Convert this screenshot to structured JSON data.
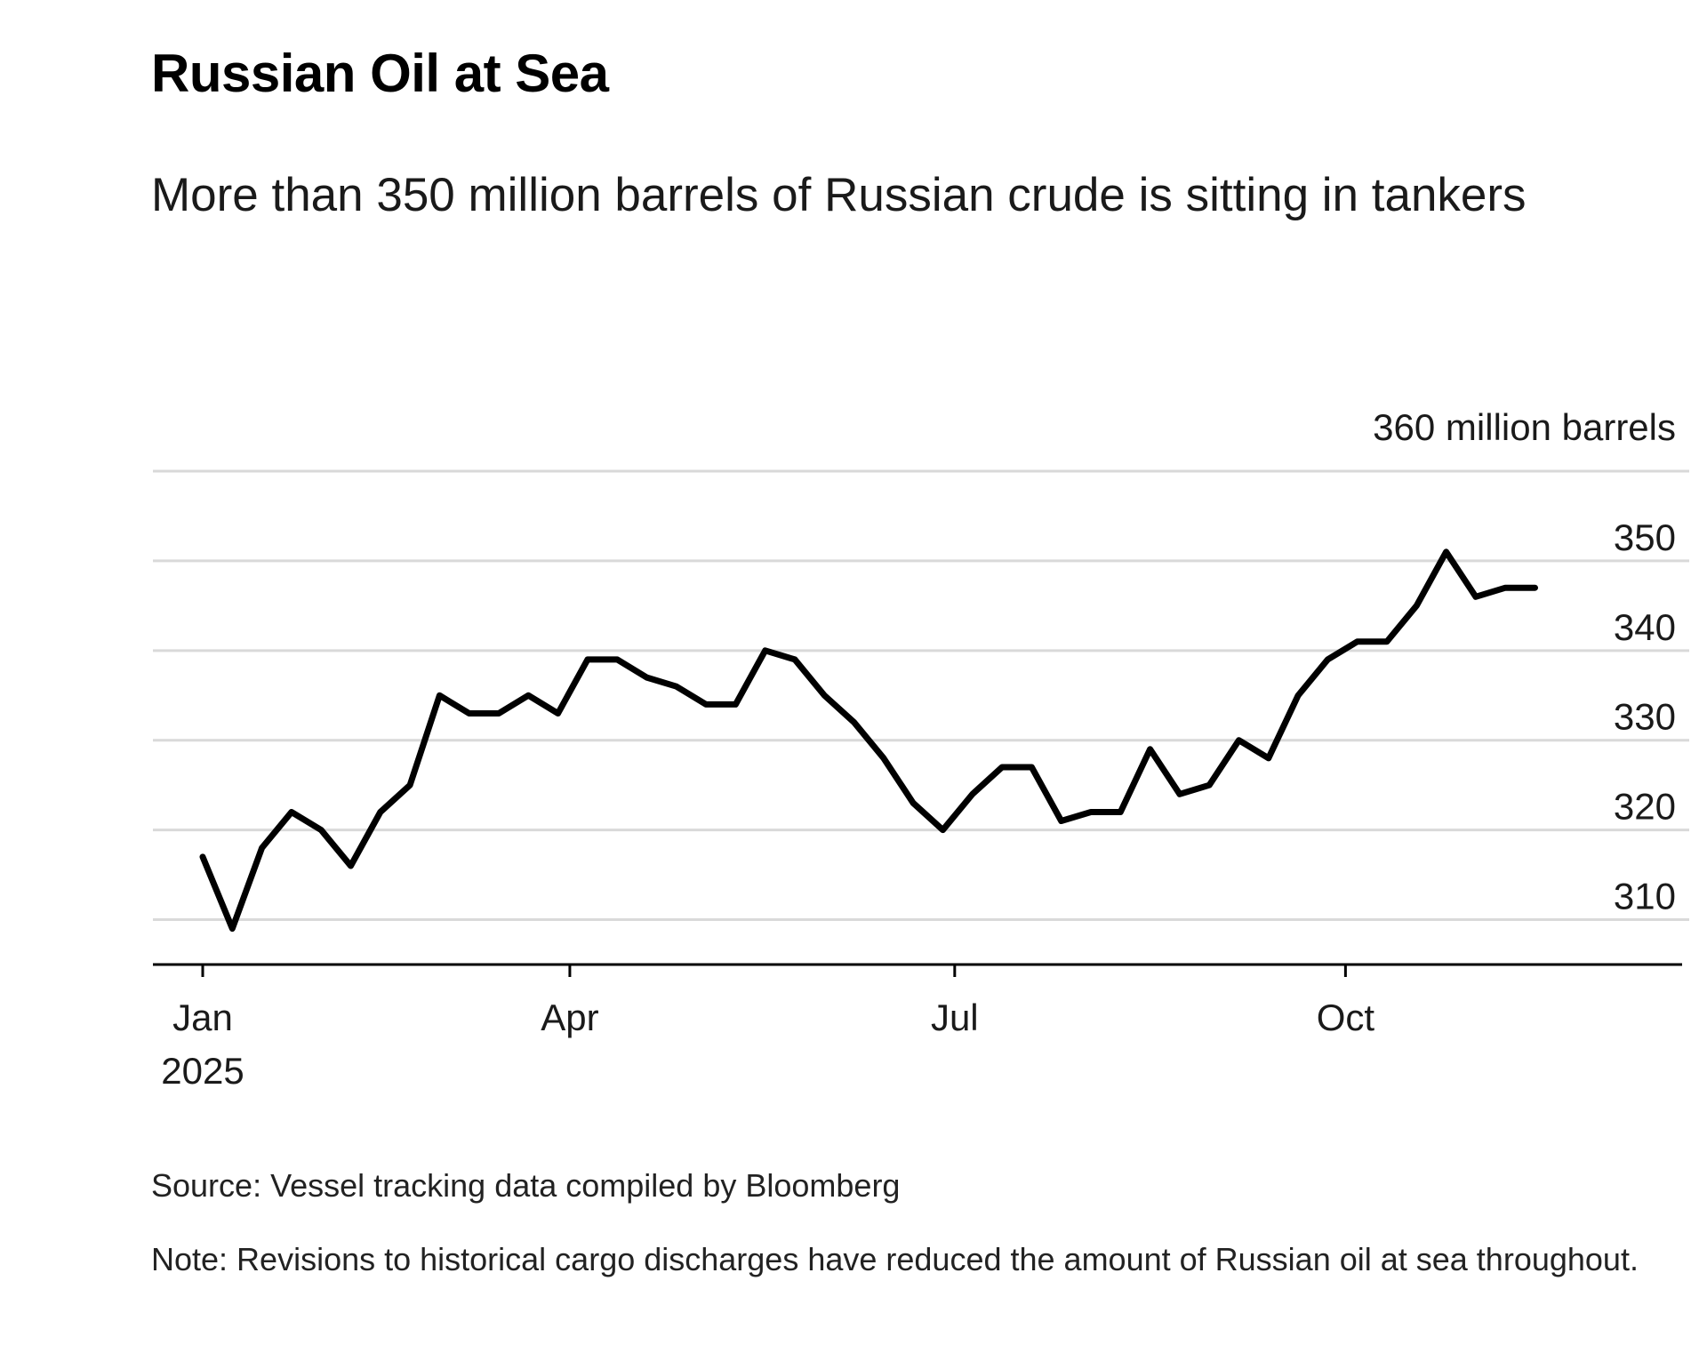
{
  "chart_data": {
    "type": "line",
    "title": "Russian Oil at Sea",
    "subtitle": "More than 350 million barrels of Russian crude is sitting in tankers",
    "unit_label": "360 million barrels",
    "ylabel": "million barrels",
    "xlabel": "",
    "ylim": [
      305,
      360
    ],
    "yticks": [
      310,
      320,
      330,
      340,
      350
    ],
    "grid": true,
    "x_ticks": [
      {
        "label": "Jan",
        "sublabel": "2025",
        "week": 0
      },
      {
        "label": "Apr",
        "sublabel": "",
        "week": 12.4
      },
      {
        "label": "Jul",
        "sublabel": "",
        "week": 25.4
      },
      {
        "label": "Oct",
        "sublabel": "",
        "week": 38.6
      }
    ],
    "series": [
      {
        "name": "Russian oil at sea",
        "color": "#000000",
        "x": [
          0,
          1,
          2,
          3,
          4,
          5,
          6,
          7,
          8,
          9,
          10,
          11,
          12,
          13,
          14,
          15,
          16,
          17,
          18,
          19,
          20,
          21,
          22,
          23,
          24,
          25,
          26,
          27,
          28,
          29,
          30,
          31,
          32,
          33,
          34,
          35,
          36,
          37,
          38,
          39,
          40,
          41,
          42,
          43,
          44,
          45
        ],
        "values": [
          317,
          309,
          318,
          322,
          320,
          316,
          322,
          325,
          335,
          333,
          333,
          335,
          333,
          339,
          339,
          337,
          336,
          334,
          334,
          340,
          339,
          335,
          332,
          328,
          323,
          320,
          324,
          327,
          327,
          321,
          322,
          322,
          329,
          324,
          325,
          330,
          328,
          335,
          339,
          341,
          341,
          345,
          351,
          346,
          347,
          347
        ]
      }
    ]
  },
  "footer": {
    "source": "Source: Vessel tracking data compiled by Bloomberg",
    "note": "Note: Revisions to historical cargo discharges have reduced the amount of Russian oil at sea throughout."
  }
}
